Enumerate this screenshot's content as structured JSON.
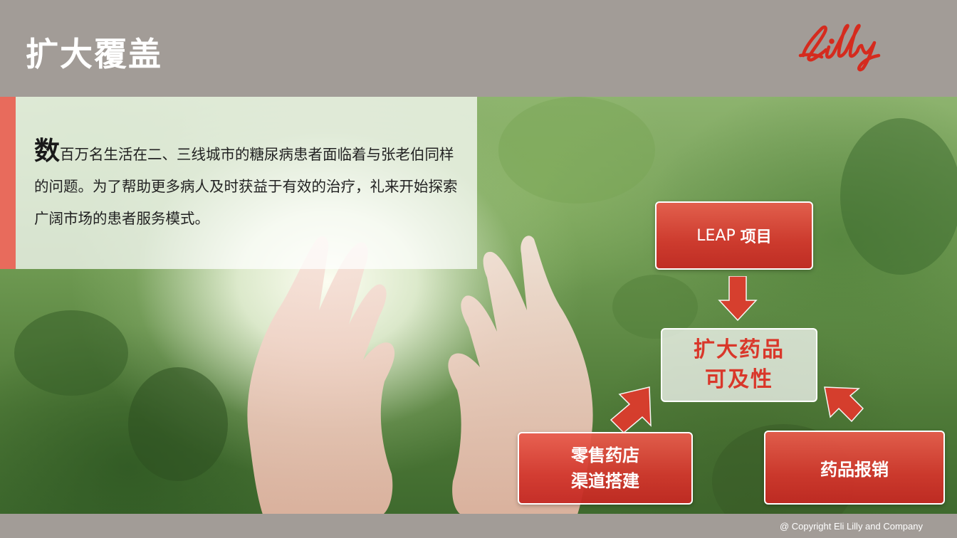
{
  "header": {
    "title": "扩大覆盖",
    "logo_text": "Lilly"
  },
  "intro": {
    "dropcap": "数",
    "text": "百万名生活在二、三线城市的糖尿病患者面临着与张老伯同样的问题。为了帮助更多病人及时获益于有效的治疗，礼来开始探索广阔市场的患者服务模式。"
  },
  "diagram": {
    "top_box": {
      "prefix": "LEAP",
      "suffix": "项目"
    },
    "center_box": {
      "line1": "扩大药品",
      "line2": "可及性"
    },
    "left_box": {
      "line1": "零售药店",
      "line2": "渠道搭建"
    },
    "right_box": {
      "label": "药品报销"
    }
  },
  "footer": {
    "copyright": "@ Copyright Eli Lilly and Company"
  },
  "colors": {
    "accent": "#e86b5c",
    "header_bg": "#a29c97",
    "logo": "#d52b1e",
    "center_text": "#d9372a"
  },
  "icons": [
    "arrow-down-icon",
    "arrow-up-right-icon",
    "arrow-up-left-icon"
  ]
}
